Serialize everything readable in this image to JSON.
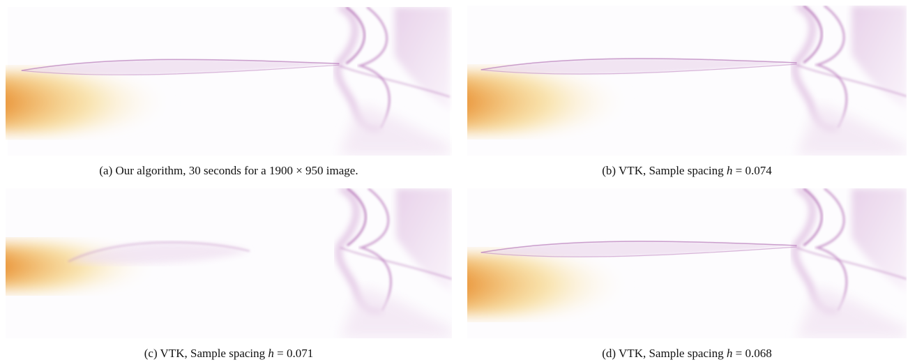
{
  "figure": {
    "panels": [
      {
        "caption": "(a) Our algorithm, 30 seconds for a 1900 × 950 image."
      },
      {
        "caption_prefix": "(b) VTK, Sample spacing",
        "variable": "h",
        "caption_suffix": "= 0.074"
      },
      {
        "caption_prefix": "(c) VTK, Sample spacing",
        "variable": "h",
        "caption_suffix": "= 0.071"
      },
      {
        "caption_prefix": "(d) VTK, Sample spacing",
        "variable": "h",
        "caption_suffix": "= 0.068"
      }
    ]
  }
}
